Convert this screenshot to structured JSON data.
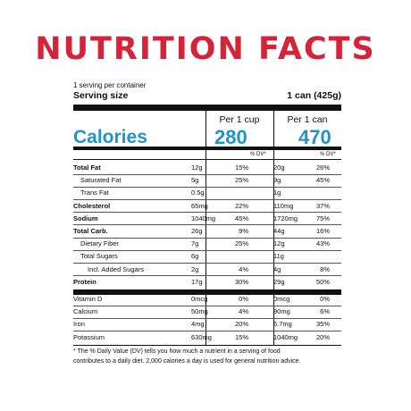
{
  "title": "NUTRITION FACTS",
  "servings_per_container": "1 serving per container",
  "serving_size": {
    "label": "Serving size",
    "value": "1 can (425g)"
  },
  "headers": {
    "col1": "Per 1 cup",
    "col2": "Per 1 can"
  },
  "calories": {
    "label": "Calories",
    "col1": "280",
    "col2": "470"
  },
  "dv_label": "% DV*",
  "nutrients": [
    {
      "name": "Total Fat",
      "bold": true,
      "indent": 0,
      "amt1": "12g",
      "dv1": "15%",
      "amt2": "20g",
      "dv2": "26%"
    },
    {
      "name": "Saturated Fat",
      "bold": false,
      "indent": 1,
      "amt1": "5g",
      "dv1": "25%",
      "amt2": "9g",
      "dv2": "45%"
    },
    {
      "name": "Trans Fat",
      "bold": false,
      "indent": 1,
      "amt1": "0.5g",
      "dv1": "",
      "amt2": "1g",
      "dv2": ""
    },
    {
      "name": "Cholesterol",
      "bold": true,
      "indent": 0,
      "amt1": "65mg",
      "dv1": "22%",
      "amt2": "110mg",
      "dv2": "37%"
    },
    {
      "name": "Sodium",
      "bold": true,
      "indent": 0,
      "amt1": "1040mg",
      "dv1": "45%",
      "amt2": "1720mg",
      "dv2": "75%"
    },
    {
      "name": "Total Carb.",
      "bold": true,
      "indent": 0,
      "amt1": "26g",
      "dv1": "9%",
      "amt2": "44g",
      "dv2": "16%"
    },
    {
      "name": "Dietary Fiber",
      "bold": false,
      "indent": 1,
      "amt1": "7g",
      "dv1": "25%",
      "amt2": "12g",
      "dv2": "43%"
    },
    {
      "name": "Total Sugars",
      "bold": false,
      "indent": 1,
      "amt1": "6g",
      "dv1": "",
      "amt2": "11g",
      "dv2": ""
    },
    {
      "name": "Incl. Added Sugars",
      "bold": false,
      "indent": 2,
      "amt1": "2g",
      "dv1": "4%",
      "amt2": "4g",
      "dv2": "8%"
    },
    {
      "name": "Protein",
      "bold": true,
      "indent": 0,
      "amt1": "17g",
      "dv1": "30%",
      "amt2": "29g",
      "dv2": "50%"
    }
  ],
  "vitamins": [
    {
      "name": "Vitamin D",
      "amt1": "0mcg",
      "dv1": "0%",
      "amt2": "0mcg",
      "dv2": "0%"
    },
    {
      "name": "Calcium",
      "amt1": "50mg",
      "dv1": "4%",
      "amt2": "90mg",
      "dv2": "6%"
    },
    {
      "name": "Iron",
      "amt1": "4mg",
      "dv1": "20%",
      "amt2": "6.7mg",
      "dv2": "35%"
    },
    {
      "name": "Potassium",
      "amt1": "630mg",
      "dv1": "15%",
      "amt2": "1040mg",
      "dv2": "20%"
    }
  ],
  "footnote_lines": [
    "* The % Daily Value (DV) tells you how much a nutrient in a serving of food",
    "contributes to a daily diet. 2,000 calories a day is used for general nutrition advice."
  ]
}
